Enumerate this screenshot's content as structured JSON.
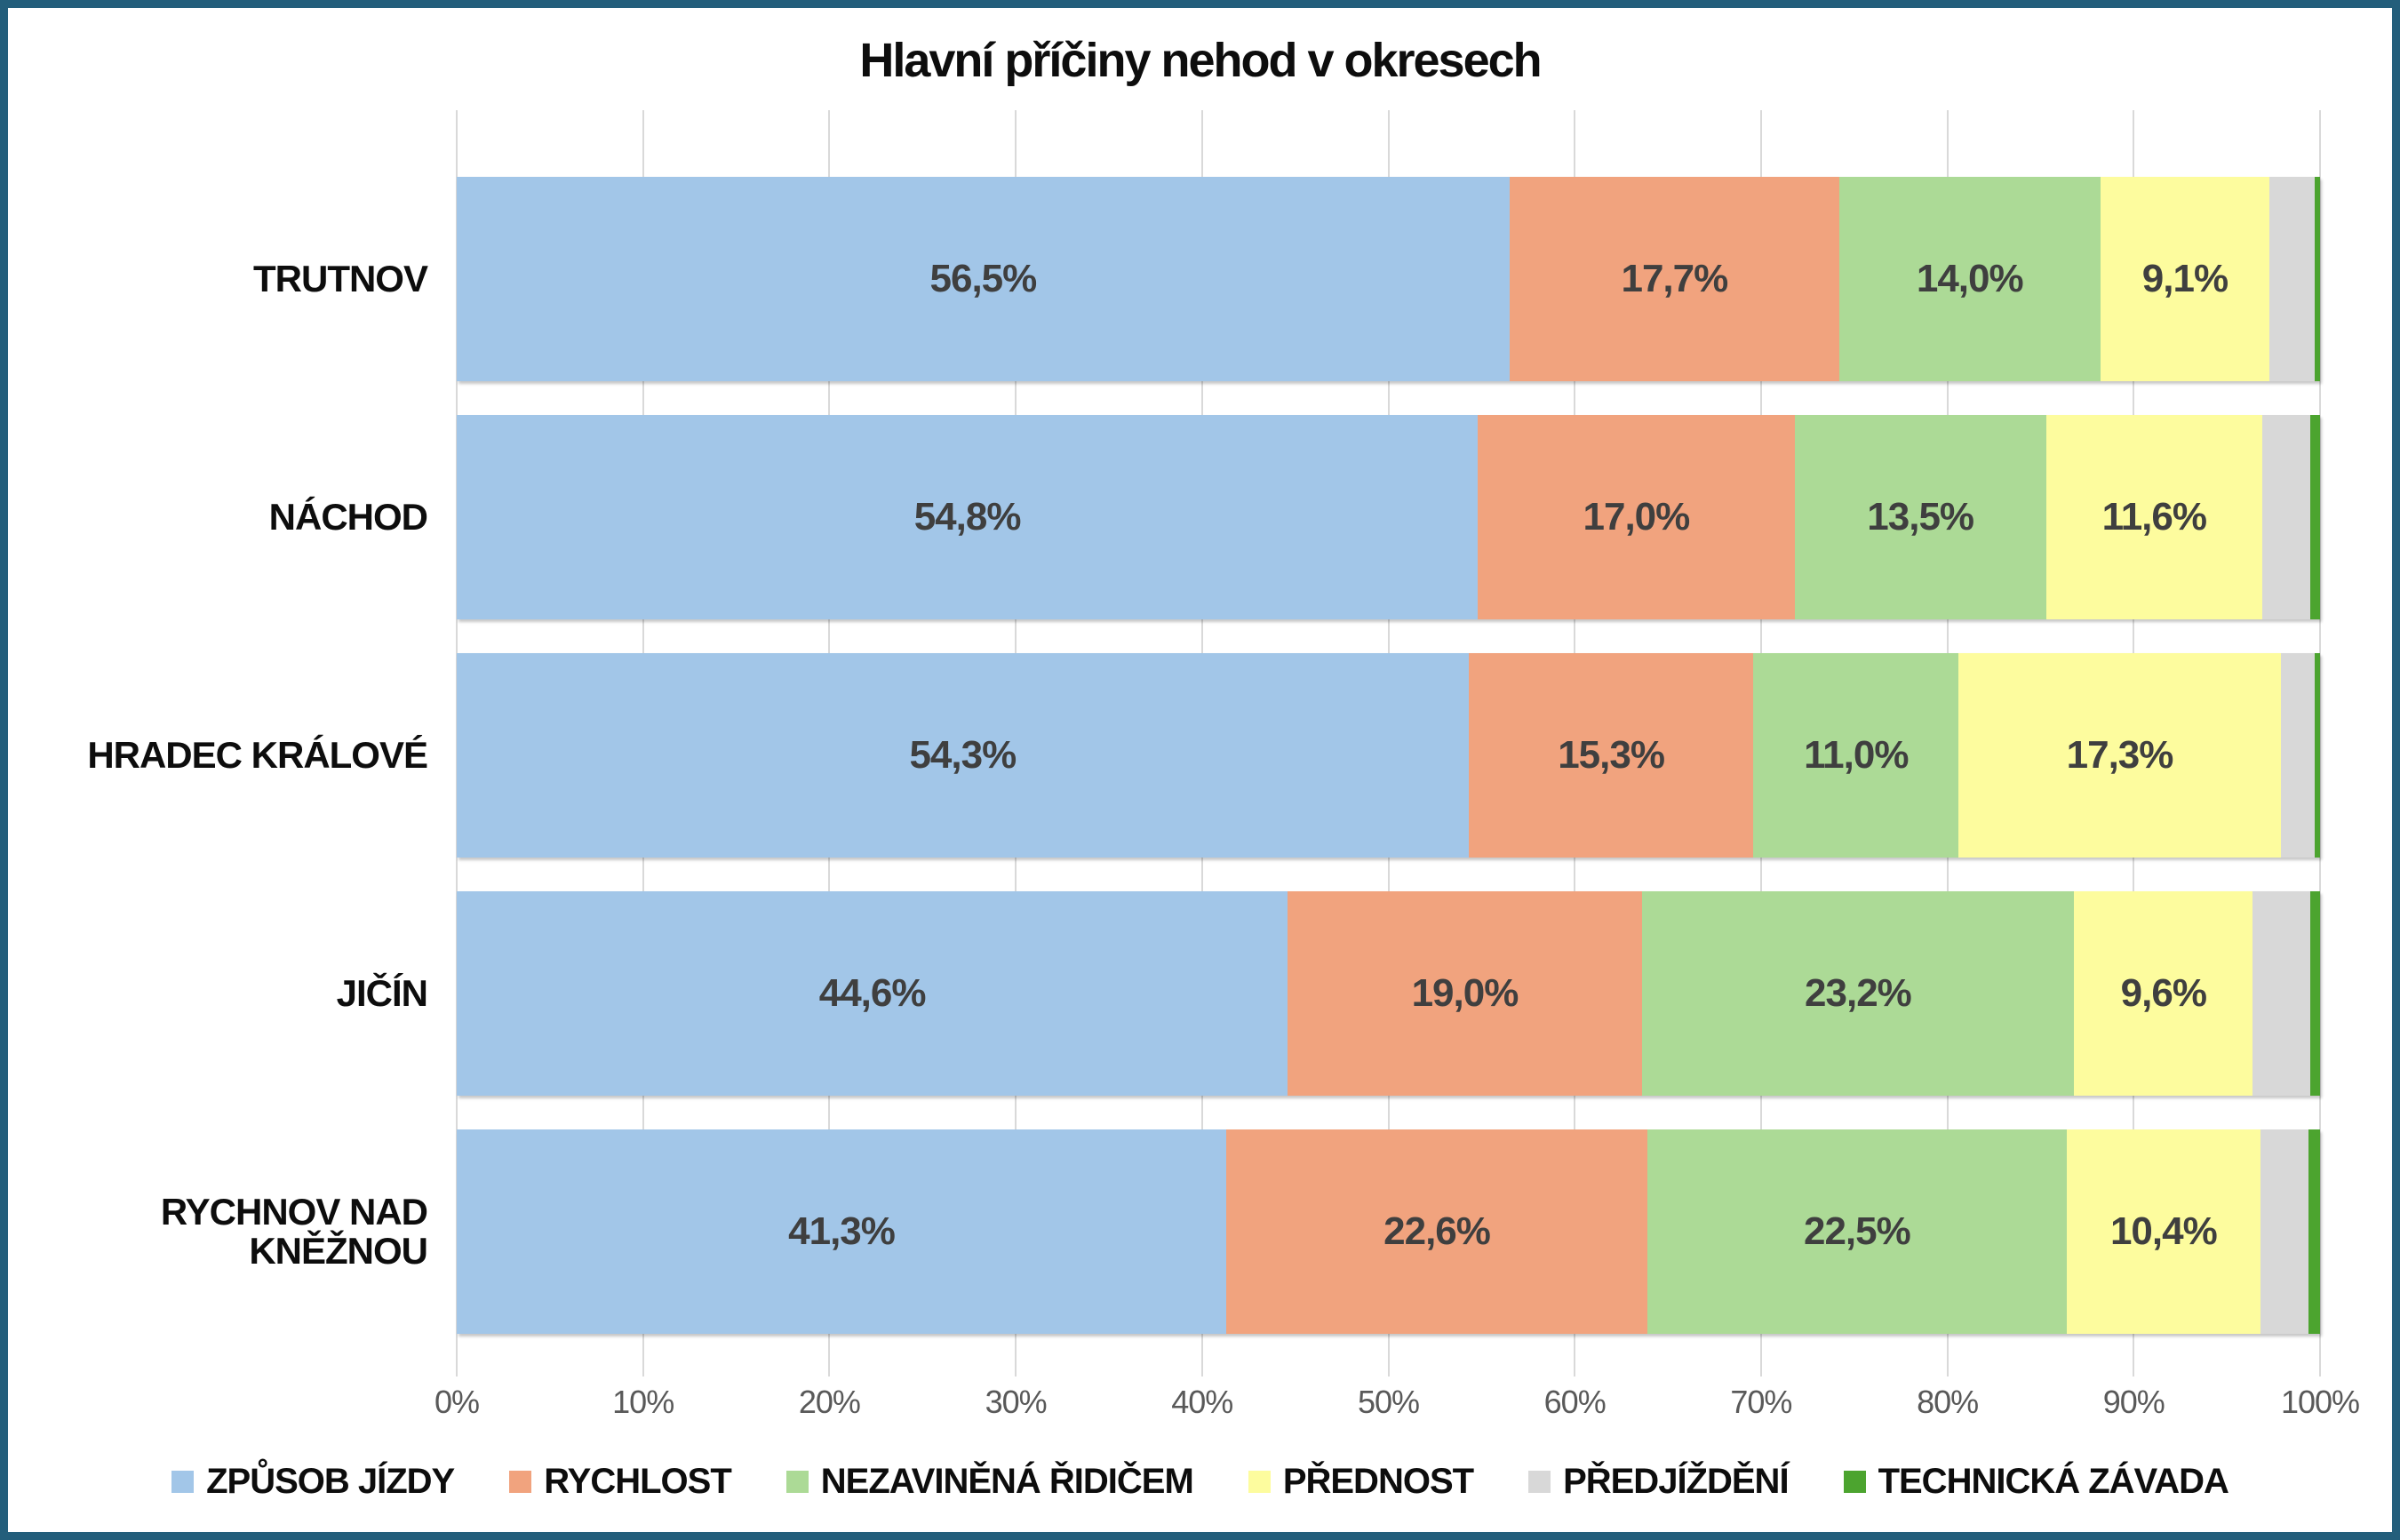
{
  "frame": {
    "border_color": "#235E7B",
    "background": "#FFFFFF"
  },
  "chart_data": {
    "type": "bar",
    "orientation": "horizontal",
    "stacked": true,
    "title": "Hlavní příčiny nehod v okresech",
    "xlabel": "",
    "ylabel": "",
    "xlim": [
      0,
      100
    ],
    "grid": true,
    "legend_position": "bottom",
    "gridline_color": "#D9D9D9",
    "tick_color": "#595959",
    "data_label_color": "#3F3F3F",
    "categories": [
      "TRUTNOV",
      "NÁCHOD",
      "HRADEC KRÁLOVÉ",
      "JIČÍN",
      "RYCHNOV NAD KNĚŽNOU"
    ],
    "x_ticks": [
      "0%",
      "10%",
      "20%",
      "30%",
      "40%",
      "50%",
      "60%",
      "70%",
      "80%",
      "90%",
      "100%"
    ],
    "series": [
      {
        "name": "ZPŮSOB JÍZDY",
        "color": "#A2C6E8",
        "values": [
          56.5,
          54.8,
          54.3,
          44.6,
          41.3
        ]
      },
      {
        "name": "RYCHLOST",
        "color": "#F1A37E",
        "values": [
          17.7,
          17.0,
          15.3,
          19.0,
          22.6
        ]
      },
      {
        "name": "NEZAVINĚNÁ ŘIDIČEM",
        "color": "#ACDA96",
        "values": [
          14.0,
          13.5,
          11.0,
          23.2,
          22.5
        ]
      },
      {
        "name": "PŘEDNOST",
        "color": "#FDFC9E",
        "values": [
          9.1,
          11.6,
          17.3,
          9.6,
          10.4
        ]
      },
      {
        "name": "PŘEDJÍŽDĚNÍ",
        "color": "#D8D8D8",
        "values": [
          2.4,
          2.6,
          1.8,
          3.1,
          2.6
        ]
      },
      {
        "name": "TECHNICKÁ ZÁVADA",
        "color": "#4CA42F",
        "values": [
          0.3,
          0.5,
          0.3,
          0.5,
          0.6
        ]
      }
    ],
    "data_labels": [
      [
        "56,5%",
        "17,7%",
        "14,0%",
        "9,1%",
        "",
        ""
      ],
      [
        "54,8%",
        "17,0%",
        "13,5%",
        "11,6%",
        "",
        ""
      ],
      [
        "54,3%",
        "15,3%",
        "11,0%",
        "17,3%",
        "",
        ""
      ],
      [
        "44,6%",
        "19,0%",
        "23,2%",
        "9,6%",
        "",
        ""
      ],
      [
        "41,3%",
        "22,6%",
        "22,5%",
        "10,4%",
        "",
        ""
      ]
    ]
  }
}
